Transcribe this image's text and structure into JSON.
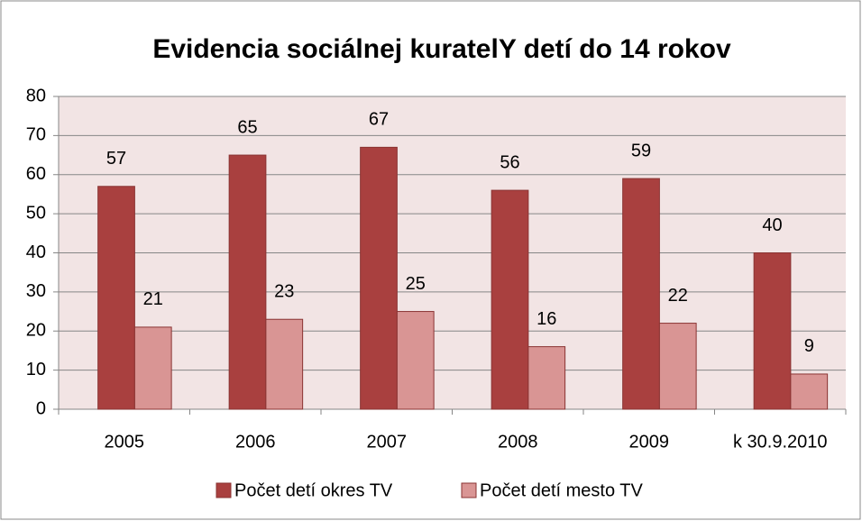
{
  "chart_data": {
    "type": "bar",
    "title": "Evidencia sociálnej kuratelY detí do 14 rokov",
    "categories": [
      "2005",
      "2006",
      "2007",
      "2008",
      "2009",
      "k 30.9.2010"
    ],
    "series": [
      {
        "name": "Počet detí okres TV",
        "color": "#a9403f",
        "values": [
          57,
          65,
          67,
          56,
          59,
          40
        ]
      },
      {
        "name": "Počet detí mesto TV",
        "color": "#d99594",
        "values": [
          21,
          23,
          25,
          16,
          22,
          9
        ]
      }
    ],
    "ylim": [
      0,
      80
    ],
    "yticks": [
      0,
      10,
      20,
      30,
      40,
      50,
      60,
      70,
      80
    ],
    "grid": true,
    "legend": "bottom"
  }
}
